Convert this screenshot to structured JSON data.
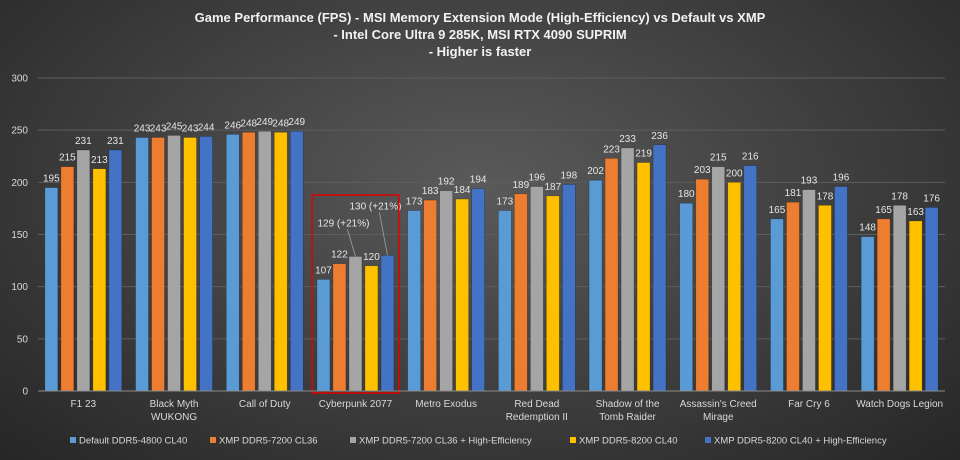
{
  "chart_data": {
    "type": "bar",
    "title": [
      "Game Performance (FPS) - MSI Memory Extension Mode (High-Efficiency) vs Default vs XMP",
      "- Intel Core Ultra 9 285K, MSI RTX 4090 SUPRIM",
      "- Higher is faster"
    ],
    "categories": [
      [
        "F1 23"
      ],
      [
        "Black Myth",
        "WUKONG"
      ],
      [
        "Call of Duty"
      ],
      [
        "Cyberpunk 2077"
      ],
      [
        "Metro Exodus"
      ],
      [
        "Red Dead",
        "Redemption II"
      ],
      [
        "Shadow of the",
        "Tomb Raider"
      ],
      [
        "Assassin's Creed",
        "Mirage"
      ],
      [
        "Far Cry 6"
      ],
      [
        "Watch Dogs Legion"
      ]
    ],
    "series": [
      {
        "name": "Default DDR5-4800 CL40",
        "color": "#5b9bd5",
        "values": [
          195,
          243,
          246,
          107,
          173,
          173,
          202,
          180,
          165,
          148
        ]
      },
      {
        "name": "XMP DDR5-7200 CL36",
        "color": "#ed7d31",
        "values": [
          215,
          243,
          248,
          122,
          183,
          189,
          223,
          203,
          181,
          165
        ]
      },
      {
        "name": "XMP DDR5-7200 CL36 + High-Efficiency",
        "color": "#a5a5a5",
        "values": [
          231,
          245,
          249,
          129,
          192,
          196,
          233,
          215,
          193,
          178
        ]
      },
      {
        "name": "XMP DDR5-8200 CL40",
        "color": "#ffc000",
        "values": [
          213,
          243,
          248,
          120,
          184,
          187,
          219,
          200,
          178,
          163
        ]
      },
      {
        "name": "XMP DDR5-8200 CL40 + High-Efficiency",
        "color": "#4472c4",
        "values": [
          231,
          244,
          249,
          130,
          194,
          198,
          236,
          216,
          196,
          176
        ]
      }
    ],
    "annotations": [
      {
        "category": "Cyberpunk 2077",
        "series": 2,
        "text": "129 (+21%)"
      },
      {
        "category": "Cyberpunk 2077",
        "series": 4,
        "text": "130 (+21%)"
      }
    ],
    "highlight": {
      "category": "Cyberpunk 2077",
      "color": "#e00000"
    },
    "ylim": [
      0,
      300
    ],
    "yticks": [
      0,
      50,
      100,
      150,
      200,
      250,
      300
    ],
    "grid": true,
    "legend": "bottom",
    "xlabel": "",
    "ylabel": ""
  }
}
